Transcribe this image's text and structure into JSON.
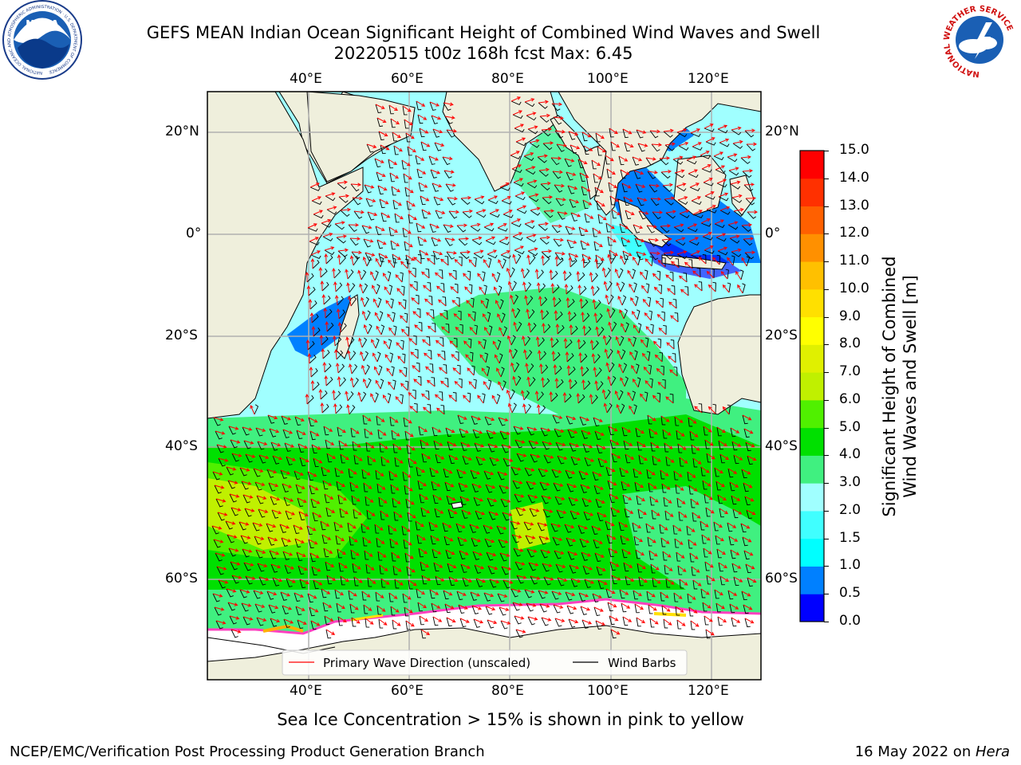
{
  "header": {
    "title_line1": "GEFS MEAN Indian Ocean Significant Height of Combined Wind Waves and Swell",
    "title_line2": "20220515 t00z 168h fcst   Max: 6.45"
  },
  "logos": {
    "noaa_text": "NOAA",
    "noaa_ring_text": "NATIONAL OCEANIC AND ATMOSPHERIC ADMINISTRATION · U.S. DEPARTMENT OF COMMERCE",
    "nws_ring_text": "NATIONAL WEATHER SERVICE"
  },
  "map": {
    "lon_ticks": [
      "40°E",
      "60°E",
      "80°E",
      "100°E",
      "120°E"
    ],
    "lat_ticks": [
      "20°N",
      "0°",
      "20°S",
      "40°S",
      "60°S"
    ],
    "legend": {
      "wave": "Primary Wave Direction (unscaled)",
      "barb": "Wind Barbs"
    },
    "colors": {
      "land": "#efefdc",
      "ice": "#ffffff",
      "wave_arrow": "#ff0000",
      "barb": "#000000",
      "grid": "#b0b0b0"
    }
  },
  "colorbar": {
    "label_line1": "Significant Height of Combined",
    "label_line2": "Wind Waves and Swell [m]",
    "ticks": [
      "0.0",
      "0.5",
      "1.0",
      "1.5",
      "2.0",
      "3.0",
      "4.0",
      "5.0",
      "6.0",
      "7.0",
      "8.0",
      "9.0",
      "10.0",
      "11.0",
      "12.0",
      "13.0",
      "14.0",
      "15.0"
    ],
    "colors": [
      "#0000ff",
      "#0080ff",
      "#00ffff",
      "#40ffff",
      "#a0ffff",
      "#40f080",
      "#00e000",
      "#50f000",
      "#c0f000",
      "#e0f000",
      "#ffff00",
      "#ffe000",
      "#ffc000",
      "#ff9000",
      "#ff6000",
      "#ff3000",
      "#ff0000"
    ]
  },
  "notes": {
    "ice_note": "Sea Ice Concentration > 15% is shown in pink to yellow",
    "branch": "NCEP/EMC/Verification Post Processing Product Generation Branch",
    "date": "16 May 2022 on ",
    "host": "Hera"
  }
}
